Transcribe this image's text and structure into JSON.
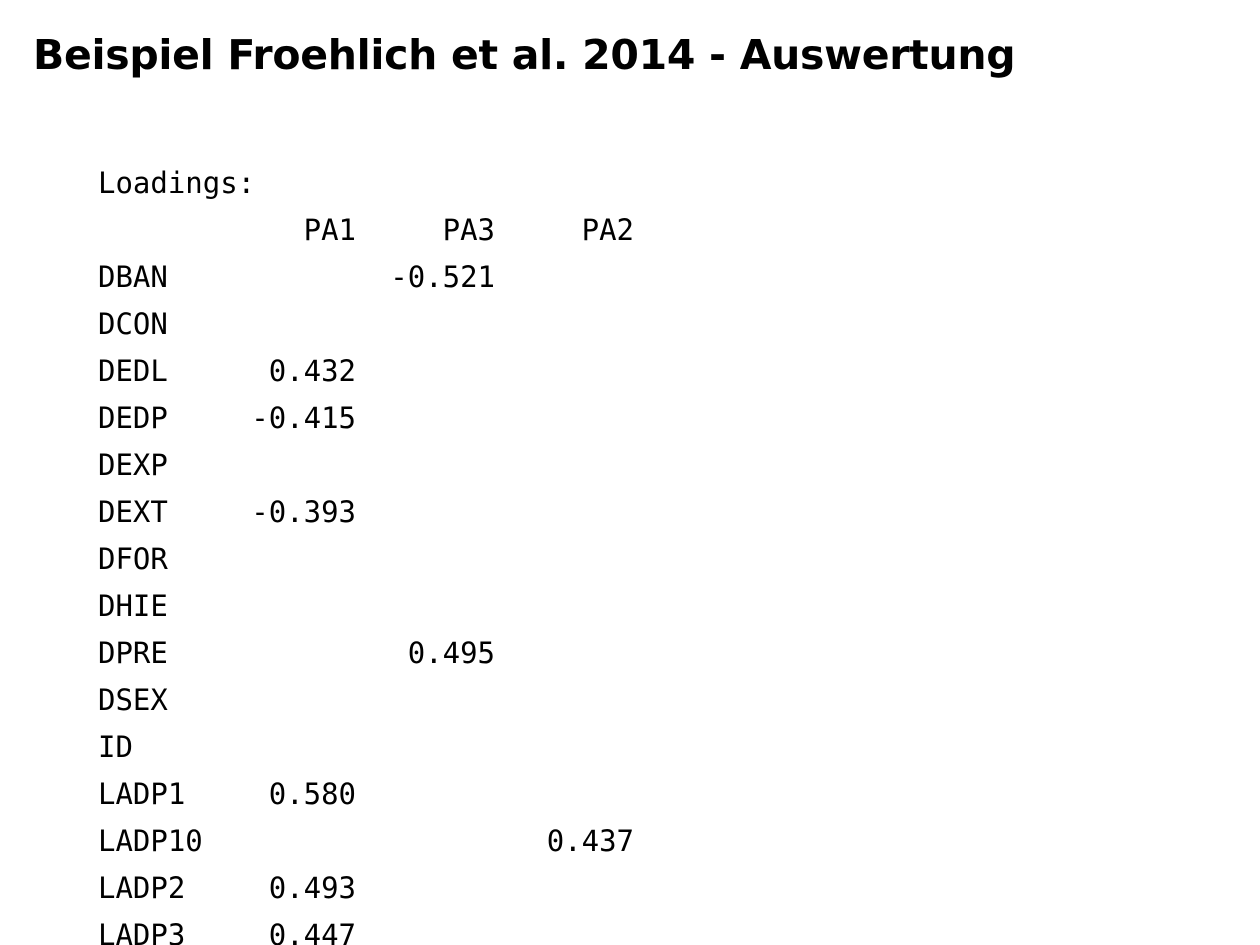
{
  "title": "Beispiel Froehlich et al. 2014 - Auswertung",
  "output": {
    "heading": "Loadings:",
    "columns": [
      "PA1",
      "PA3",
      "PA2"
    ],
    "rows": [
      {
        "name": "DBAN",
        "values": [
          "",
          "-0.521",
          ""
        ]
      },
      {
        "name": "DCON",
        "values": [
          "",
          "",
          ""
        ]
      },
      {
        "name": "DEDL",
        "values": [
          "0.432",
          "",
          ""
        ]
      },
      {
        "name": "DEDP",
        "values": [
          "-0.415",
          "",
          ""
        ]
      },
      {
        "name": "DEXP",
        "values": [
          "",
          "",
          ""
        ]
      },
      {
        "name": "DEXT",
        "values": [
          "-0.393",
          "",
          ""
        ]
      },
      {
        "name": "DFOR",
        "values": [
          "",
          "",
          ""
        ]
      },
      {
        "name": "DHIE",
        "values": [
          "",
          "",
          ""
        ]
      },
      {
        "name": "DPRE",
        "values": [
          "",
          "0.495",
          ""
        ]
      },
      {
        "name": "DSEX",
        "values": [
          "",
          "",
          ""
        ]
      },
      {
        "name": "ID",
        "values": [
          "",
          "",
          ""
        ]
      },
      {
        "name": "LADP1",
        "values": [
          "0.580",
          "",
          ""
        ]
      },
      {
        "name": "LADP10",
        "values": [
          "",
          "",
          "0.437"
        ]
      },
      {
        "name": "LADP2",
        "values": [
          "0.493",
          "",
          ""
        ]
      },
      {
        "name": "LADP3",
        "values": [
          "0.447",
          "",
          ""
        ]
      }
    ]
  }
}
